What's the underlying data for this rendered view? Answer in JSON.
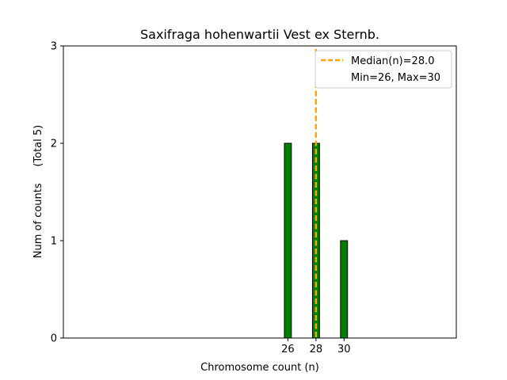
{
  "chart_data": {
    "type": "bar",
    "title": "Saxifraga hohenwartii Vest ex Sternb.",
    "xlabel": "Chromosome count (n)",
    "ylabel": "Num of counts     (Total 5)",
    "xlim": [
      10,
      38
    ],
    "ylim": [
      0,
      3
    ],
    "yticks": [
      0,
      1,
      2,
      3
    ],
    "xticks": [
      26,
      28,
      30
    ],
    "bars": [
      {
        "x": 26,
        "value": 2
      },
      {
        "x": 28,
        "value": 2
      },
      {
        "x": 30,
        "value": 1
      }
    ],
    "bar_width": 0.5,
    "bar_color": "#008000",
    "bar_edge_color": "#000000",
    "median": {
      "value": 28.0,
      "color": "#ffa500"
    },
    "legend": {
      "placement": "top-right",
      "entries": [
        {
          "label": "Median(n)=28.0",
          "style": "dashed-line",
          "color": "#ffa500"
        },
        {
          "label": "Min=26, Max=30",
          "style": "none"
        }
      ]
    },
    "grid": false
  }
}
